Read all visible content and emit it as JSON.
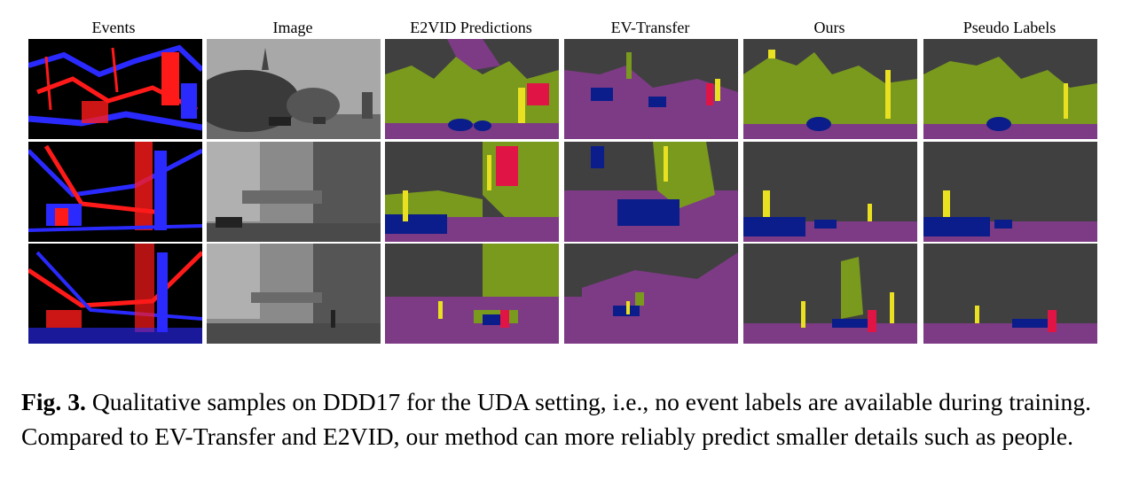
{
  "figure": {
    "columns": [
      "Events",
      "Image",
      "E2VID Predictions",
      "EV-Transfer",
      "Ours",
      "Pseudo Labels"
    ],
    "caption_label": "Fig. 3.",
    "caption_text": "Qualitative samples on DDD17 for the UDA setting, i.e., no event labels are available during training. Compared to EV-Transfer and E2VID, our method can more reliably predict smaller details such as people."
  },
  "colors": {
    "background_class": "#404040",
    "road": "#7d3b85",
    "vegetation": "#7a9a1e",
    "vehicle": "#0b1d8a",
    "object": "#e8e020",
    "person": "#e01545",
    "event_positive": "#ff1a1a",
    "event_negative": "#2a2aff"
  }
}
